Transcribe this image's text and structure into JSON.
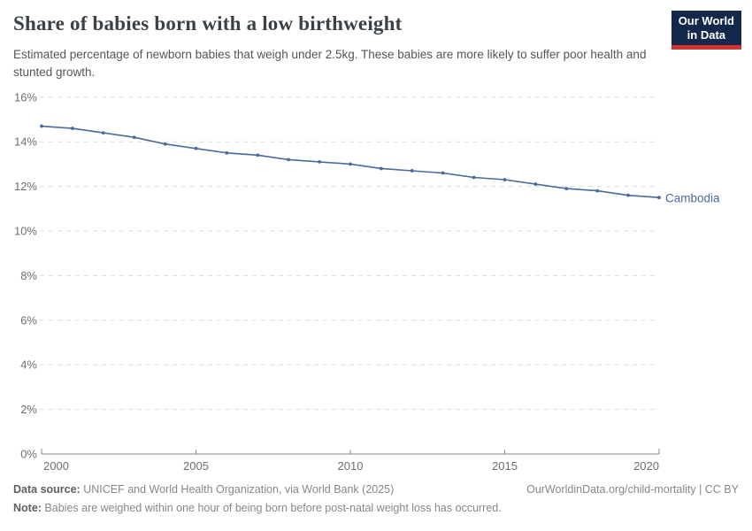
{
  "header": {
    "title": "Share of babies born with a low birthweight",
    "subtitle": "Estimated percentage of newborn babies that weigh under 2.5kg. These babies are more likely to suffer poor health and stunted growth.",
    "logo_line1": "Our World",
    "logo_line2": "in Data"
  },
  "chart_data": {
    "type": "line",
    "title": "Share of babies born with a low birthweight",
    "xlabel": "",
    "ylabel": "",
    "xlim": [
      2000,
      2020
    ],
    "ylim": [
      0,
      16
    ],
    "y_tick_step": 2,
    "y_tick_suffix": "%",
    "x_ticks": [
      2000,
      2005,
      2010,
      2015,
      2020
    ],
    "grid": "horizontal-dashed",
    "legend_position": "end-of-line-label",
    "series": [
      {
        "name": "Cambodia",
        "color": "#4C6A9C",
        "x": [
          2000,
          2001,
          2002,
          2003,
          2004,
          2005,
          2006,
          2007,
          2008,
          2009,
          2010,
          2011,
          2012,
          2013,
          2014,
          2015,
          2016,
          2017,
          2018,
          2019,
          2020
        ],
        "values": [
          14.7,
          14.6,
          14.4,
          14.2,
          13.9,
          13.7,
          13.5,
          13.4,
          13.2,
          13.1,
          13.0,
          12.8,
          12.7,
          12.6,
          12.4,
          12.3,
          12.1,
          11.9,
          11.8,
          11.6,
          11.5
        ]
      }
    ]
  },
  "footer": {
    "datasource_label": "Data source:",
    "datasource_text": " UNICEF and World Health Organization, via World Bank (2025)",
    "link_text": "OurWorldinData.org/child-mortality | CC BY",
    "note_label": "Note:",
    "note_text": " Babies are weighed within one hour of being born before post-natal weight loss has occurred."
  },
  "colors": {
    "accent": "#4C6A9C",
    "grid": "#dcdcdc",
    "axis": "#8a8a8a",
    "tick_label": "#6e6e6e",
    "logo_background": "#12294b",
    "logo_stripe": "#d03332"
  }
}
